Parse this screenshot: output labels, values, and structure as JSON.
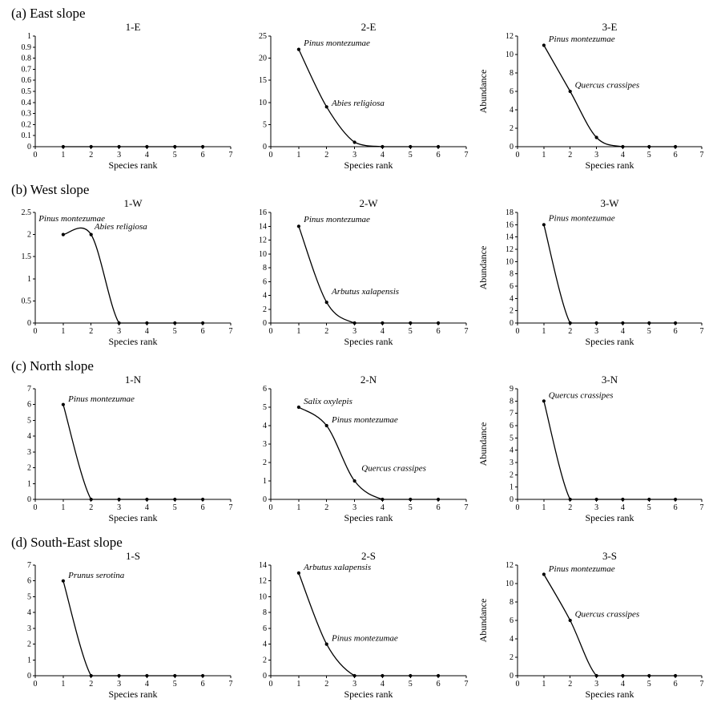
{
  "figure": {
    "sections": [
      {
        "label": "(a) East slope"
      },
      {
        "label": "(b) West slope"
      },
      {
        "label": "(c) North slope"
      },
      {
        "label": "(d) South-East slope"
      }
    ],
    "line_color": "#000000",
    "marker_color": "#000000"
  },
  "chart_data": [
    {
      "type": "line",
      "title": "1-E",
      "xlabel": "Species rank",
      "ylabel": "",
      "xlim": [
        0,
        7
      ],
      "xticks": [
        0,
        1,
        2,
        3,
        4,
        5,
        6,
        7
      ],
      "ylim": [
        0,
        1
      ],
      "yticks": [
        0,
        0.1,
        0.2,
        0.3,
        0.4,
        0.5,
        0.6,
        0.7,
        0.8,
        0.9,
        1
      ],
      "x": [
        1,
        2,
        3,
        4,
        5,
        6
      ],
      "values": [
        0,
        0,
        0,
        0,
        0,
        0
      ],
      "annotations": []
    },
    {
      "type": "line",
      "title": "2-E",
      "xlabel": "Species rank",
      "ylabel": "",
      "xlim": [
        0,
        7
      ],
      "xticks": [
        0,
        1,
        2,
        3,
        4,
        5,
        6,
        7
      ],
      "ylim": [
        0,
        25
      ],
      "yticks": [
        0,
        5,
        10,
        15,
        20,
        25
      ],
      "x": [
        1,
        2,
        3,
        4,
        5,
        6
      ],
      "values": [
        22,
        9,
        1,
        0,
        0,
        0
      ],
      "annotations": [
        {
          "text": "Pinus montezumae",
          "x": 1.18,
          "y": 22.8
        },
        {
          "text": "Abies religiosa",
          "x": 2.18,
          "y": 9.2
        }
      ]
    },
    {
      "type": "line",
      "title": "3-E",
      "xlabel": "Species rank",
      "ylabel": "Abundance",
      "xlim": [
        0,
        7
      ],
      "xticks": [
        0,
        1,
        2,
        3,
        4,
        5,
        6,
        7
      ],
      "ylim": [
        0,
        12
      ],
      "yticks": [
        0,
        2,
        4,
        6,
        8,
        10,
        12
      ],
      "x": [
        1,
        2,
        3,
        4,
        5,
        6
      ],
      "values": [
        11,
        6,
        1,
        0,
        0,
        0
      ],
      "annotations": [
        {
          "text": "Pinus montezumae",
          "x": 1.18,
          "y": 11.4
        },
        {
          "text": "Quercus crassipes",
          "x": 2.18,
          "y": 6.4
        }
      ]
    },
    {
      "type": "line",
      "title": "1-W",
      "xlabel": "Species rank",
      "ylabel": "",
      "xlim": [
        0,
        7
      ],
      "xticks": [
        0,
        1,
        2,
        3,
        4,
        5,
        6,
        7
      ],
      "ylim": [
        0,
        2.5
      ],
      "yticks": [
        0,
        0.5,
        1,
        1.5,
        2,
        2.5
      ],
      "x": [
        1,
        2,
        3,
        4,
        5,
        6
      ],
      "values": [
        2,
        2,
        0,
        0,
        0,
        0
      ],
      "annotations": [
        {
          "text": "Pinus montezumae",
          "x": 0.12,
          "y": 2.3
        },
        {
          "text": "Abies religiosa",
          "x": 2.12,
          "y": 2.12
        }
      ]
    },
    {
      "type": "line",
      "title": "2-W",
      "xlabel": "Species rank",
      "ylabel": "",
      "xlim": [
        0,
        7
      ],
      "xticks": [
        0,
        1,
        2,
        3,
        4,
        5,
        6,
        7
      ],
      "ylim": [
        0,
        16
      ],
      "yticks": [
        0,
        2,
        4,
        6,
        8,
        10,
        12,
        14,
        16
      ],
      "x": [
        1,
        2,
        3,
        4,
        5,
        6
      ],
      "values": [
        14,
        3,
        0,
        0,
        0,
        0
      ],
      "annotations": [
        {
          "text": "Pinus montezumae",
          "x": 1.18,
          "y": 14.6
        },
        {
          "text": "Arbutus xalapensis",
          "x": 2.18,
          "y": 4.2
        }
      ]
    },
    {
      "type": "line",
      "title": "3-W",
      "xlabel": "Species rank",
      "ylabel": "Abundance",
      "xlim": [
        0,
        7
      ],
      "xticks": [
        0,
        1,
        2,
        3,
        4,
        5,
        6,
        7
      ],
      "ylim": [
        0,
        18
      ],
      "yticks": [
        0,
        2,
        4,
        6,
        8,
        10,
        12,
        14,
        16,
        18
      ],
      "x": [
        1,
        2,
        3,
        4,
        5,
        6
      ],
      "values": [
        16,
        0,
        0,
        0,
        0,
        0
      ],
      "annotations": [
        {
          "text": "Pinus montezumae",
          "x": 1.18,
          "y": 16.6
        }
      ]
    },
    {
      "type": "line",
      "title": "1-N",
      "xlabel": "Species rank",
      "ylabel": "",
      "xlim": [
        0,
        7
      ],
      "xticks": [
        0,
        1,
        2,
        3,
        4,
        5,
        6,
        7
      ],
      "ylim": [
        0,
        7
      ],
      "yticks": [
        0,
        1,
        2,
        3,
        4,
        5,
        6,
        7
      ],
      "x": [
        1,
        2,
        3,
        4,
        5,
        6
      ],
      "values": [
        6,
        0,
        0,
        0,
        0,
        0
      ],
      "annotations": [
        {
          "text": "Pinus montezumae",
          "x": 1.18,
          "y": 6.2
        }
      ]
    },
    {
      "type": "line",
      "title": "2-N",
      "xlabel": "Species rank",
      "ylabel": "",
      "xlim": [
        0,
        7
      ],
      "xticks": [
        0,
        1,
        2,
        3,
        4,
        5,
        6,
        7
      ],
      "ylim": [
        0,
        6
      ],
      "yticks": [
        0,
        1,
        2,
        3,
        4,
        5,
        6
      ],
      "x": [
        1,
        2,
        3,
        4,
        5,
        6
      ],
      "values": [
        5,
        4,
        1,
        0,
        0,
        0
      ],
      "annotations": [
        {
          "text": "Salix oxylepis",
          "x": 1.18,
          "y": 5.18
        },
        {
          "text": "Pinus montezumae",
          "x": 2.18,
          "y": 4.18
        },
        {
          "text": "Quercus crassipes",
          "x": 3.25,
          "y": 1.55
        }
      ]
    },
    {
      "type": "line",
      "title": "3-N",
      "xlabel": "Species rank",
      "ylabel": "Abundance",
      "xlim": [
        0,
        7
      ],
      "xticks": [
        0,
        1,
        2,
        3,
        4,
        5,
        6,
        7
      ],
      "ylim": [
        0,
        9
      ],
      "yticks": [
        0,
        1,
        2,
        3,
        4,
        5,
        6,
        7,
        8,
        9
      ],
      "x": [
        1,
        2,
        3,
        4,
        5,
        6
      ],
      "values": [
        8,
        0,
        0,
        0,
        0,
        0
      ],
      "annotations": [
        {
          "text": "Quercus crassipes",
          "x": 1.18,
          "y": 8.25
        }
      ]
    },
    {
      "type": "line",
      "title": "1-S",
      "xlabel": "Species rank",
      "ylabel": "",
      "xlim": [
        0,
        7
      ],
      "xticks": [
        0,
        1,
        2,
        3,
        4,
        5,
        6,
        7
      ],
      "ylim": [
        0,
        7
      ],
      "yticks": [
        0,
        1,
        2,
        3,
        4,
        5,
        6,
        7
      ],
      "x": [
        1,
        2,
        3,
        4,
        5,
        6
      ],
      "values": [
        6,
        0,
        0,
        0,
        0,
        0
      ],
      "annotations": [
        {
          "text": "Prunus serotina",
          "x": 1.18,
          "y": 6.2
        }
      ]
    },
    {
      "type": "line",
      "title": "2-S",
      "xlabel": "Species rank",
      "ylabel": "",
      "xlim": [
        0,
        7
      ],
      "xticks": [
        0,
        1,
        2,
        3,
        4,
        5,
        6,
        7
      ],
      "ylim": [
        0,
        14
      ],
      "yticks": [
        0,
        2,
        4,
        6,
        8,
        10,
        12,
        14
      ],
      "x": [
        1,
        2,
        3,
        4,
        5,
        6
      ],
      "values": [
        13,
        4,
        0,
        0,
        0,
        0
      ],
      "annotations": [
        {
          "text": "Arbutus xalapensis",
          "x": 1.18,
          "y": 13.4
        },
        {
          "text": "Pinus montezumae",
          "x": 2.18,
          "y": 4.4
        }
      ]
    },
    {
      "type": "line",
      "title": "3-S",
      "xlabel": "Species rank",
      "ylabel": "Abundance",
      "xlim": [
        0,
        7
      ],
      "xticks": [
        0,
        1,
        2,
        3,
        4,
        5,
        6,
        7
      ],
      "ylim": [
        0,
        12
      ],
      "yticks": [
        0,
        2,
        4,
        6,
        8,
        10,
        12
      ],
      "x": [
        1,
        2,
        3,
        4,
        5,
        6
      ],
      "values": [
        11,
        6,
        0,
        0,
        0,
        0
      ],
      "annotations": [
        {
          "text": "Pinus montezumae",
          "x": 1.18,
          "y": 11.3
        },
        {
          "text": "Quercus crassipes",
          "x": 2.18,
          "y": 6.4
        }
      ]
    }
  ]
}
